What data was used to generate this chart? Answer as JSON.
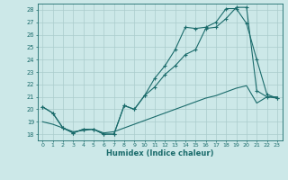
{
  "title": "",
  "xlabel": "Humidex (Indice chaleur)",
  "xlim": [
    -0.5,
    23.5
  ],
  "ylim": [
    17.5,
    28.5
  ],
  "yticks": [
    18,
    19,
    20,
    21,
    22,
    23,
    24,
    25,
    26,
    27,
    28
  ],
  "xticks": [
    0,
    1,
    2,
    3,
    4,
    5,
    6,
    7,
    8,
    9,
    10,
    11,
    12,
    13,
    14,
    15,
    16,
    17,
    18,
    19,
    20,
    21,
    22,
    23
  ],
  "background_color": "#cce8e8",
  "grid_color": "#aacccc",
  "line_color": "#1a6b6b",
  "line1_x": [
    0,
    1,
    2,
    3,
    4,
    5,
    6,
    7,
    8,
    9,
    10,
    11,
    12,
    13,
    14,
    15,
    16,
    17,
    18,
    19,
    20,
    21,
    22,
    23
  ],
  "line1_y": [
    20.2,
    19.7,
    18.5,
    18.1,
    18.4,
    18.4,
    18.0,
    18.0,
    20.3,
    20.0,
    21.1,
    21.8,
    22.8,
    23.5,
    24.4,
    24.8,
    26.5,
    26.6,
    27.3,
    28.2,
    28.2,
    21.5,
    21.0,
    20.9
  ],
  "line2_x": [
    0,
    1,
    2,
    3,
    4,
    5,
    6,
    7,
    8,
    9,
    10,
    11,
    12,
    13,
    14,
    15,
    16,
    17,
    18,
    19,
    20,
    21,
    22,
    23
  ],
  "line2_y": [
    20.2,
    19.7,
    18.5,
    18.1,
    18.4,
    18.4,
    18.0,
    18.0,
    20.3,
    20.0,
    21.1,
    22.5,
    23.5,
    24.8,
    26.6,
    26.5,
    26.6,
    27.0,
    28.1,
    28.1,
    26.9,
    24.0,
    21.2,
    20.9
  ],
  "line3_x": [
    0,
    1,
    2,
    3,
    4,
    5,
    6,
    7,
    8,
    9,
    10,
    11,
    12,
    13,
    14,
    15,
    16,
    17,
    18,
    19,
    20,
    21,
    22,
    23
  ],
  "line3_y": [
    19.0,
    18.8,
    18.5,
    18.2,
    18.3,
    18.4,
    18.1,
    18.2,
    18.5,
    18.8,
    19.1,
    19.4,
    19.7,
    20.0,
    20.3,
    20.6,
    20.9,
    21.1,
    21.4,
    21.7,
    21.9,
    20.5,
    21.0,
    21.0
  ]
}
